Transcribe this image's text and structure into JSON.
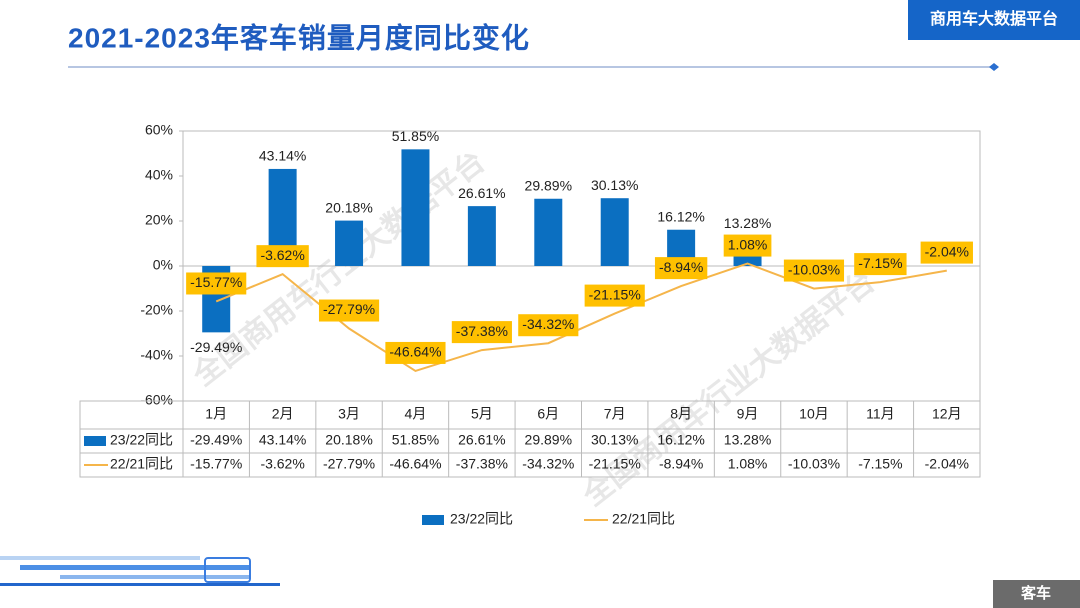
{
  "header": {
    "title": "2021-2023年客车销量月度同比变化",
    "badge": "商用车大数据平台",
    "footer": "客车"
  },
  "watermark": "全国商用车行业大数据平台",
  "chart_data": {
    "type": "combo",
    "categories": [
      "1月",
      "2月",
      "3月",
      "4月",
      "5月",
      "6月",
      "7月",
      "8月",
      "9月",
      "10月",
      "11月",
      "12月"
    ],
    "series": [
      {
        "name": "23/22同比",
        "type": "bar",
        "color": "#0b6fc1",
        "values": [
          -29.49,
          43.14,
          20.18,
          51.85,
          26.61,
          29.89,
          30.13,
          16.12,
          13.28,
          null,
          null,
          null
        ],
        "value_labels": [
          "-29.49%",
          "43.14%",
          "20.18%",
          "51.85%",
          "26.61%",
          "29.89%",
          "30.13%",
          "16.12%",
          "13.28%",
          null,
          null,
          null
        ]
      },
      {
        "name": "22/21同比",
        "type": "line",
        "color": "#f5b54a",
        "label_color": "#ffc000",
        "values": [
          -15.77,
          -3.62,
          -27.79,
          -46.64,
          -37.38,
          -34.32,
          -21.15,
          -8.94,
          1.08,
          -10.03,
          -7.15,
          -2.04
        ],
        "value_labels": [
          "-15.77%",
          "-3.62%",
          "-27.79%",
          "-46.64%",
          "-37.38%",
          "-34.32%",
          "-21.15%",
          "-8.94%",
          "1.08%",
          "-10.03%",
          "-7.15%",
          "-2.04%"
        ]
      }
    ],
    "ylim": [
      -60,
      60
    ],
    "yticks": [
      {
        "value": -60,
        "label": "-60%"
      },
      {
        "value": -40,
        "label": "-40%"
      },
      {
        "value": -20,
        "label": "-20%"
      },
      {
        "value": 0,
        "label": "0%"
      },
      {
        "value": 20,
        "label": "20%"
      },
      {
        "value": 40,
        "label": "40%"
      },
      {
        "value": 60,
        "label": "60%"
      }
    ],
    "grid": false,
    "data_table": true
  }
}
